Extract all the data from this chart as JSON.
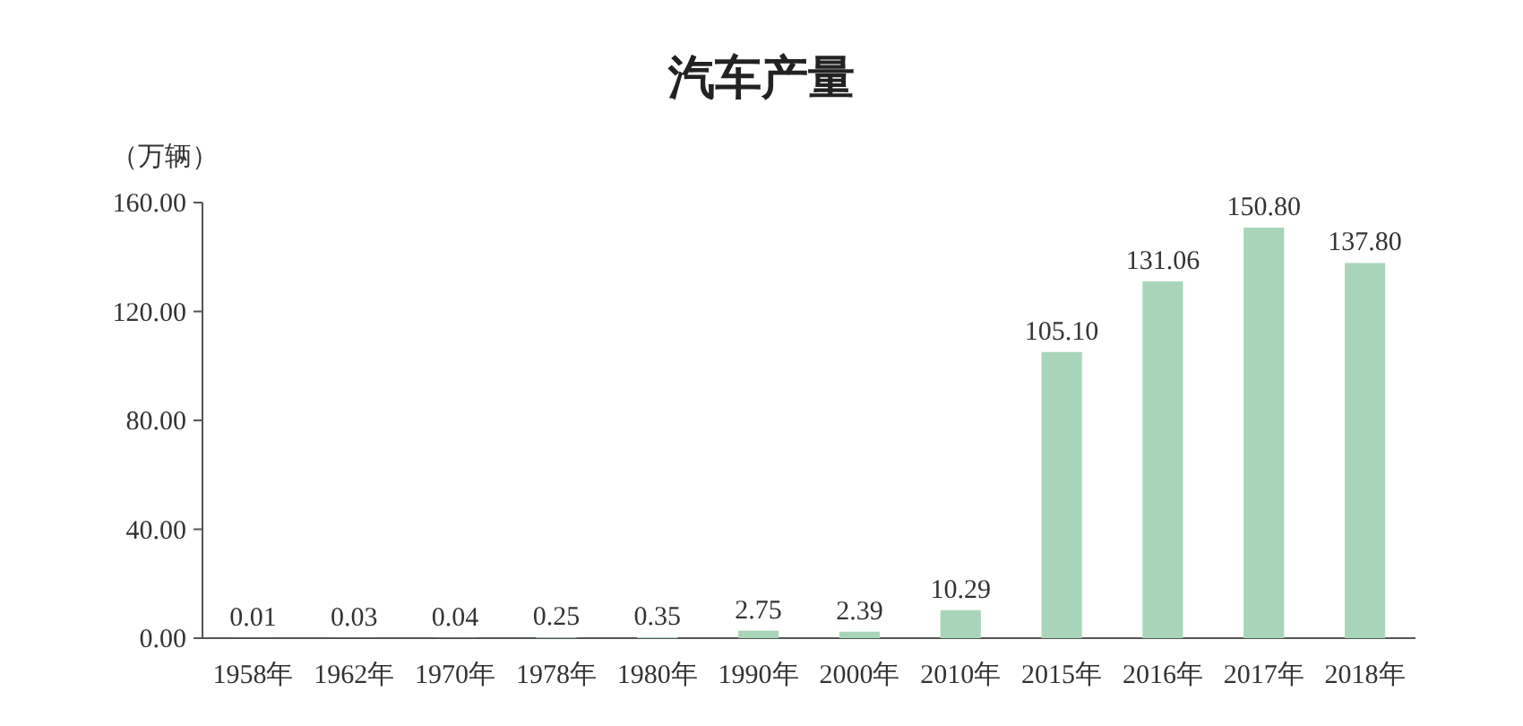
{
  "chart_data": {
    "type": "bar",
    "title": "汽车产量",
    "ylabel": "（万辆）",
    "categories": [
      "1958年",
      "1962年",
      "1970年",
      "1978年",
      "1980年",
      "1990年",
      "2000年",
      "2010年",
      "2015年",
      "2016年",
      "2017年",
      "2018年"
    ],
    "values": [
      0.01,
      0.03,
      0.04,
      0.25,
      0.35,
      2.75,
      2.39,
      10.29,
      105.1,
      131.06,
      150.8,
      137.8
    ],
    "value_labels": [
      "0.01",
      "0.03",
      "0.04",
      "0.25",
      "0.35",
      "2.75",
      "2.39",
      "10.29",
      "105.10",
      "131.06",
      "150.80",
      "137.80"
    ],
    "color": "#a8d5b9",
    "ylim": [
      0,
      160
    ],
    "yticks": [
      {
        "value": 0,
        "label": "0.00"
      },
      {
        "value": 40,
        "label": "40.00"
      },
      {
        "value": 80,
        "label": "80.00"
      },
      {
        "value": 120,
        "label": "120.00"
      },
      {
        "value": 160,
        "label": "160.00"
      }
    ]
  }
}
